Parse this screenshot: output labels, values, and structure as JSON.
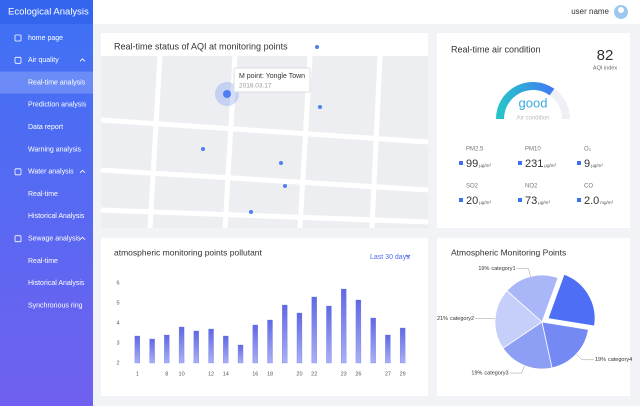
{
  "sidebar": {
    "title": "Ecological Analysis",
    "menu": [
      {
        "label": "home page"
      },
      {
        "label": "Air quality",
        "children": [
          "Real-time analysis",
          "Prediction analysis",
          "Data report",
          "Warning analysis"
        ]
      },
      {
        "label": "Water analysis",
        "children": [
          "Real-time",
          "Historical Analysis"
        ]
      },
      {
        "label": "Sewage analysis",
        "children": [
          "Real-time",
          "Historical Analysis",
          "Synchronous ring"
        ]
      }
    ]
  },
  "header": {
    "user": "user name"
  },
  "map_panel": {
    "title": "Real-time status of AQI at monitoring points",
    "popup": {
      "name": "M point: Yongle Town",
      "date": "2018.03.17"
    }
  },
  "air_panel": {
    "title": "Real-time air condition",
    "aqi": "82",
    "aqi_label": "AQI index",
    "status": "good",
    "status_label": "Air condition",
    "pollutants": [
      {
        "name": "PM2.5",
        "value": "99",
        "unit": "μg/m³"
      },
      {
        "name": "PM10",
        "value": "231",
        "unit": "μg/m³"
      },
      {
        "name": "O₃",
        "value": "9",
        "unit": "μg/m³"
      },
      {
        "name": "SO2",
        "value": "20",
        "unit": "μg/m³"
      },
      {
        "name": "NO2",
        "value": "73",
        "unit": "μg/m³"
      },
      {
        "name": "CO",
        "value": "2.0",
        "unit": "mg/m³"
      }
    ]
  },
  "chart_data": [
    {
      "type": "bar",
      "title": "atmospheric monitoring points pollutant",
      "range_label": "Last 30 days",
      "categories": [
        "1",
        null,
        "8",
        "10",
        null,
        "12",
        "14",
        null,
        "16",
        "18",
        null,
        "20",
        "22",
        null,
        "23",
        "26",
        null,
        "27",
        "29"
      ],
      "values": [
        3.35,
        3.2,
        3.4,
        3.8,
        3.6,
        3.7,
        3.35,
        2.9,
        3.9,
        4.15,
        4.9,
        4.5,
        5.3,
        4.85,
        5.7,
        5.15,
        4.25,
        3.4,
        3.75
      ],
      "color": "#6c72e6",
      "ylim": [
        2,
        6
      ],
      "yticks": [
        2,
        3,
        4,
        5,
        6
      ]
    },
    {
      "type": "pie",
      "title": "Atmospheric Monitoring Points",
      "categories": [
        "category1",
        "category2",
        "category3",
        "category4",
        null
      ],
      "values": [
        19,
        21,
        19,
        19,
        22
      ],
      "value_labels": [
        "19%",
        "21%",
        "19%",
        "19%",
        null
      ],
      "colors": [
        "#a9b6f7",
        "#c6cffa",
        "#8d9ef5",
        "#7489f3",
        "#4f6ef6"
      ]
    }
  ]
}
